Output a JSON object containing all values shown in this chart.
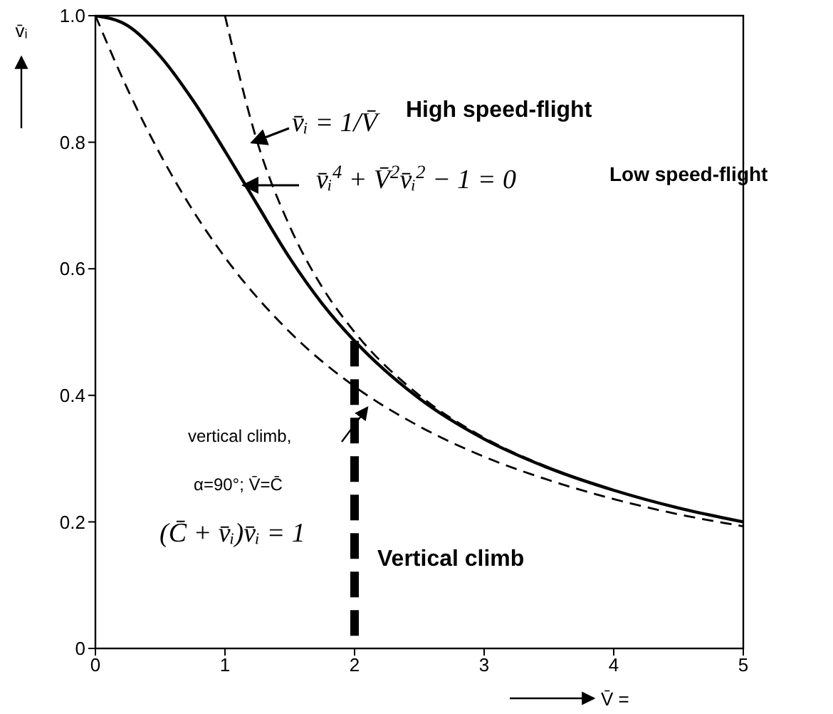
{
  "chart_data": {
    "type": "line",
    "xlabel": "V̄ =",
    "ylabel": "v̄ᵢ",
    "xlim": [
      0,
      5
    ],
    "ylim": [
      0,
      1
    ],
    "xticks": [
      0,
      1,
      2,
      3,
      4,
      5
    ],
    "yticks": [
      0,
      {
        "value": 0.2,
        "label": "0.2"
      },
      {
        "value": 0.4,
        "label": "0.4"
      },
      {
        "value": 0.6,
        "label": "0.6"
      },
      {
        "value": 0.8,
        "label": "0.8"
      },
      {
        "value": 1,
        "label": "1.0"
      }
    ],
    "grid": false,
    "marker": "none",
    "series": [
      {
        "color": "#000000",
        "line_style": "dashed",
        "x": [
          1,
          1.25,
          1.5,
          1.75,
          2,
          2.5,
          3,
          3.5,
          4,
          4.5,
          5
        ],
        "values": [
          1,
          0.8,
          0.667,
          0.571,
          0.5,
          0.4,
          0.333,
          0.286,
          0.25,
          0.222,
          0.2
        ]
      },
      {
        "color": "#000000",
        "line_style": "solid",
        "x": [
          0,
          0.25,
          0.5,
          0.75,
          1,
          1.25,
          1.5,
          1.75,
          2,
          2.5,
          3,
          3.5,
          4,
          4.5,
          5
        ],
        "values": [
          1,
          0.984,
          0.936,
          0.867,
          0.786,
          0.701,
          0.617,
          0.545,
          0.486,
          0.395,
          0.331,
          0.285,
          0.25,
          0.222,
          0.2
        ]
      },
      {
        "color": "#000000",
        "line_style": "dashed",
        "x": [
          0,
          0.25,
          0.5,
          0.75,
          1,
          1.5,
          2,
          2.5,
          3,
          3.5,
          4,
          4.5,
          5
        ],
        "values": [
          1,
          0.883,
          0.781,
          0.693,
          0.618,
          0.5,
          0.414,
          0.351,
          0.303,
          0.266,
          0.236,
          0.212,
          0.193
        ]
      }
    ],
    "ref_lines": [
      {
        "axis": "x",
        "value": 2,
        "color": "#000000",
        "line_style": "dashed"
      }
    ],
    "annotations": [
      "v̄ᵢ = 1/V̄",
      "High speed-flight",
      "v̄ᵢ$^{4}$ + V̄$^{2}$v̄ᵢ$^{2}$ − 1 = 0",
      "Low speed-flight",
      "vertical climb,",
      "α=90°; V̄=C̄",
      "(C̄ + v̄ᵢ)v̄ᵢ = 1",
      "Vertical climb"
    ]
  }
}
